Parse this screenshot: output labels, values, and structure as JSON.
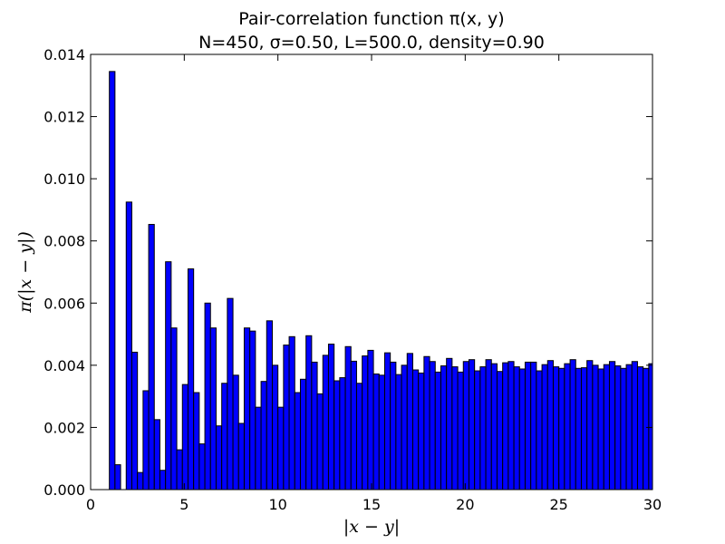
{
  "chart_data": {
    "type": "bar",
    "title": "Pair-correlation function π(x, y)",
    "subtitle": "N=450, σ=0.50, L=500.0, density=0.90",
    "xlabel": "|x − y|",
    "ylabel": "π(|x − y|)",
    "xlim": [
      0,
      30
    ],
    "ylim": [
      0,
      0.014
    ],
    "x_ticks": [
      "0",
      "5",
      "10",
      "15",
      "20",
      "25",
      "30"
    ],
    "y_ticks": [
      "0.000",
      "0.002",
      "0.004",
      "0.006",
      "0.008",
      "0.010",
      "0.012",
      "0.014"
    ],
    "grid": false,
    "legend": "none",
    "bar_color": "#0000ff",
    "bin_width": 0.3,
    "bin_start": 1.0,
    "values": [
      0.01345,
      0.0008,
      0.0,
      0.00925,
      0.00442,
      0.00055,
      0.00318,
      0.00853,
      0.00225,
      0.00062,
      0.00733,
      0.0052,
      0.00128,
      0.00338,
      0.0071,
      0.00312,
      0.00147,
      0.006,
      0.0052,
      0.00205,
      0.00342,
      0.00615,
      0.00368,
      0.00213,
      0.0052,
      0.0051,
      0.00265,
      0.00348,
      0.00543,
      0.004,
      0.00265,
      0.00465,
      0.00492,
      0.00312,
      0.00355,
      0.00495,
      0.0041,
      0.00308,
      0.00432,
      0.00468,
      0.0035,
      0.0036,
      0.0046,
      0.00413,
      0.00342,
      0.0043,
      0.00448,
      0.00372,
      0.00368,
      0.0044,
      0.0041,
      0.0037,
      0.004,
      0.00438,
      0.00385,
      0.00375,
      0.00428,
      0.00412,
      0.00378,
      0.00398,
      0.00422,
      0.00395,
      0.00378,
      0.00412,
      0.00418,
      0.00382,
      0.00395,
      0.00418,
      0.00405,
      0.0038,
      0.00408,
      0.00412,
      0.00395,
      0.00388,
      0.0041,
      0.0041,
      0.00382,
      0.00402,
      0.00415,
      0.00395,
      0.0039,
      0.00405,
      0.00418,
      0.0039,
      0.00392,
      0.00415,
      0.004,
      0.00388,
      0.00402,
      0.00412,
      0.00398,
      0.0039,
      0.00402,
      0.00412,
      0.00395,
      0.0039,
      0.00405,
      0.00418
    ]
  }
}
